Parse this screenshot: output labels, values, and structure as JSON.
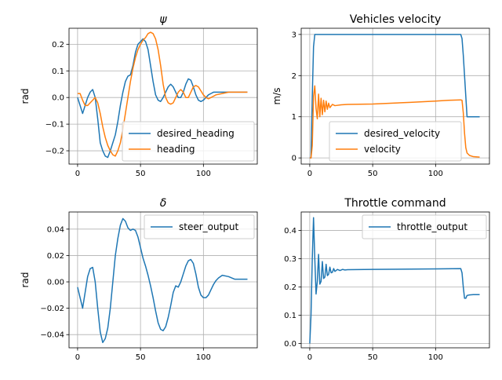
{
  "chart_data": [
    {
      "type": "line",
      "title": "ψ",
      "xlabel": "",
      "ylabel": "rad",
      "xlim": [
        -6.8,
        142.8
      ],
      "ylim": [
        -0.25,
        0.26
      ],
      "xticks": [
        0,
        50,
        100
      ],
      "yticks": [
        -0.2,
        -0.1,
        0.0,
        0.1,
        0.2
      ],
      "ytick_labels": [
        "−0.2",
        "−0.1",
        "0.0",
        "0.1",
        "0.2"
      ],
      "grid": true,
      "legend_position": "lower-right",
      "series": [
        {
          "name": "desired_heading",
          "color": "#1f77b4",
          "x": [
            0,
            2,
            4,
            6,
            8,
            10,
            12,
            14,
            16,
            18,
            20,
            22,
            24,
            26,
            28,
            30,
            32,
            34,
            36,
            38,
            40,
            42,
            44,
            46,
            48,
            50,
            52,
            54,
            56,
            58,
            60,
            62,
            64,
            66,
            68,
            70,
            72,
            74,
            76,
            78,
            80,
            82,
            84,
            86,
            88,
            90,
            92,
            94,
            96,
            98,
            100,
            102,
            104,
            106,
            108,
            110,
            115,
            120,
            125,
            130,
            135
          ],
          "y": [
            0.0,
            -0.03,
            -0.06,
            -0.03,
            0.0,
            0.02,
            0.03,
            0.0,
            -0.08,
            -0.17,
            -0.2,
            -0.22,
            -0.225,
            -0.2,
            -0.17,
            -0.14,
            -0.09,
            -0.03,
            0.02,
            0.06,
            0.08,
            0.085,
            0.12,
            0.17,
            0.2,
            0.21,
            0.22,
            0.21,
            0.18,
            0.12,
            0.06,
            0.01,
            -0.01,
            -0.015,
            0.0,
            0.02,
            0.04,
            0.05,
            0.04,
            0.02,
            0.0,
            0.0,
            0.02,
            0.05,
            0.07,
            0.065,
            0.04,
            0.01,
            -0.01,
            -0.015,
            -0.01,
            0.0,
            0.01,
            0.015,
            0.02,
            0.02,
            0.02,
            0.02,
            0.02,
            0.02,
            0.02
          ]
        },
        {
          "name": "heading",
          "color": "#ff7f0e",
          "x": [
            0,
            2,
            4,
            6,
            8,
            10,
            12,
            14,
            16,
            18,
            20,
            22,
            24,
            26,
            28,
            30,
            32,
            34,
            36,
            38,
            40,
            42,
            44,
            46,
            48,
            50,
            52,
            54,
            56,
            58,
            60,
            62,
            64,
            66,
            68,
            70,
            72,
            74,
            76,
            78,
            80,
            82,
            84,
            86,
            88,
            90,
            92,
            94,
            96,
            98,
            100,
            102,
            104,
            106,
            108,
            110,
            115,
            120,
            125,
            130,
            135
          ],
          "y": [
            0.015,
            0.015,
            -0.01,
            -0.03,
            -0.03,
            -0.02,
            -0.01,
            0.0,
            -0.02,
            -0.06,
            -0.11,
            -0.15,
            -0.18,
            -0.2,
            -0.215,
            -0.22,
            -0.2,
            -0.17,
            -0.12,
            -0.06,
            0.0,
            0.06,
            0.11,
            0.15,
            0.18,
            0.2,
            0.215,
            0.225,
            0.24,
            0.245,
            0.24,
            0.22,
            0.18,
            0.12,
            0.05,
            0.0,
            -0.02,
            -0.025,
            -0.02,
            0.0,
            0.02,
            0.03,
            0.02,
            0.0,
            0.0,
            0.02,
            0.04,
            0.045,
            0.04,
            0.025,
            0.01,
            0.0,
            -0.005,
            0.0,
            0.005,
            0.01,
            0.015,
            0.02,
            0.02,
            0.02,
            0.02
          ]
        }
      ]
    },
    {
      "type": "line",
      "title": "Vehicles velocity",
      "xlabel": "",
      "ylabel": "m/s",
      "xlim": [
        -6.8,
        142.8
      ],
      "ylim": [
        -0.15,
        3.15
      ],
      "xticks": [
        0,
        50,
        100
      ],
      "yticks": [
        0,
        1,
        2,
        3
      ],
      "ytick_labels": [
        "0",
        "1",
        "2",
        "3"
      ],
      "grid": true,
      "legend_position": "lower-center",
      "series": [
        {
          "name": "desired_velocity",
          "color": "#1f77b4",
          "x": [
            0,
            1,
            2,
            3,
            4,
            5,
            10,
            50,
            100,
            120,
            121,
            122,
            123,
            124,
            125,
            130,
            135
          ],
          "y": [
            0,
            0,
            1.5,
            2.7,
            3.0,
            3.0,
            3.0,
            3.0,
            3.0,
            3.0,
            2.9,
            2.5,
            2.0,
            1.5,
            1.0,
            1.0,
            1.0
          ]
        },
        {
          "name": "velocity",
          "color": "#ff7f0e",
          "x": [
            0,
            1,
            2,
            3,
            4,
            5,
            6,
            7,
            8,
            9,
            10,
            11,
            12,
            13,
            14,
            15,
            16,
            18,
            20,
            25,
            30,
            50,
            80,
            100,
            110,
            120,
            121,
            122,
            123,
            124,
            125,
            127,
            130,
            135
          ],
          "y": [
            0,
            0,
            0.3,
            1.5,
            1.75,
            1.2,
            0.95,
            1.55,
            1.0,
            1.45,
            1.05,
            1.4,
            1.12,
            1.38,
            1.18,
            1.33,
            1.22,
            1.3,
            1.27,
            1.29,
            1.3,
            1.31,
            1.35,
            1.38,
            1.4,
            1.41,
            1.4,
            1.1,
            0.6,
            0.25,
            0.12,
            0.06,
            0.03,
            0.02
          ]
        }
      ]
    },
    {
      "type": "line",
      "title": "δ",
      "xlabel": "",
      "ylabel": "rad",
      "xlim": [
        -6.8,
        142.8
      ],
      "ylim": [
        -0.05,
        0.053
      ],
      "xticks": [
        0,
        50,
        100
      ],
      "yticks": [
        -0.04,
        -0.02,
        0.0,
        0.02,
        0.04
      ],
      "ytick_labels": [
        "−0.04",
        "−0.02",
        "0.00",
        "0.02",
        "0.04"
      ],
      "grid": true,
      "legend_position": "upper-right",
      "series": [
        {
          "name": "steer_output",
          "color": "#1f77b4",
          "x": [
            0,
            2,
            4,
            6,
            8,
            10,
            12,
            14,
            16,
            18,
            20,
            22,
            24,
            26,
            28,
            30,
            32,
            34,
            36,
            38,
            40,
            42,
            44,
            46,
            48,
            50,
            52,
            54,
            56,
            58,
            60,
            62,
            64,
            66,
            68,
            70,
            72,
            74,
            76,
            78,
            80,
            82,
            84,
            86,
            88,
            90,
            92,
            94,
            96,
            98,
            100,
            102,
            104,
            106,
            108,
            110,
            112,
            115,
            120,
            125,
            130,
            135
          ],
          "y": [
            -0.004,
            -0.012,
            -0.02,
            -0.008,
            0.004,
            0.01,
            0.011,
            0.0,
            -0.02,
            -0.038,
            -0.046,
            -0.043,
            -0.035,
            -0.02,
            0.0,
            0.02,
            0.033,
            0.043,
            0.048,
            0.046,
            0.041,
            0.039,
            0.04,
            0.039,
            0.034,
            0.026,
            0.018,
            0.012,
            0.005,
            -0.003,
            -0.012,
            -0.022,
            -0.031,
            -0.036,
            -0.037,
            -0.034,
            -0.027,
            -0.018,
            -0.008,
            -0.003,
            -0.004,
            0.0,
            0.006,
            0.012,
            0.016,
            0.017,
            0.014,
            0.006,
            -0.004,
            -0.01,
            -0.012,
            -0.012,
            -0.01,
            -0.006,
            -0.002,
            0.001,
            0.003,
            0.005,
            0.004,
            0.002,
            0.002,
            0.002
          ]
        }
      ]
    },
    {
      "type": "line",
      "title": "Throttle command",
      "xlabel": "",
      "ylabel": "",
      "xlim": [
        -6.8,
        142.8
      ],
      "ylim": [
        -0.015,
        0.465
      ],
      "xticks": [
        0,
        50,
        100
      ],
      "yticks": [
        0.0,
        0.1,
        0.2,
        0.3,
        0.4
      ],
      "ytick_labels": [
        "0.0",
        "0.1",
        "0.2",
        "0.3",
        "0.4"
      ],
      "grid": true,
      "legend_position": "upper-right",
      "series": [
        {
          "name": "throttle_output",
          "color": "#1f77b4",
          "x": [
            0,
            1,
            2,
            3,
            4,
            5,
            6,
            7,
            8,
            9,
            10,
            11,
            12,
            13,
            14,
            15,
            16,
            17,
            18,
            19,
            20,
            22,
            24,
            26,
            28,
            30,
            50,
            80,
            100,
            120,
            121,
            122,
            123,
            124,
            125,
            127,
            130,
            135
          ],
          "y": [
            0.0,
            0.1,
            0.3,
            0.445,
            0.3,
            0.175,
            0.22,
            0.315,
            0.21,
            0.22,
            0.29,
            0.23,
            0.235,
            0.28,
            0.24,
            0.245,
            0.27,
            0.25,
            0.252,
            0.265,
            0.255,
            0.262,
            0.258,
            0.262,
            0.26,
            0.261,
            0.262,
            0.263,
            0.264,
            0.265,
            0.25,
            0.2,
            0.16,
            0.16,
            0.17,
            0.172,
            0.173,
            0.173
          ]
        }
      ]
    }
  ]
}
